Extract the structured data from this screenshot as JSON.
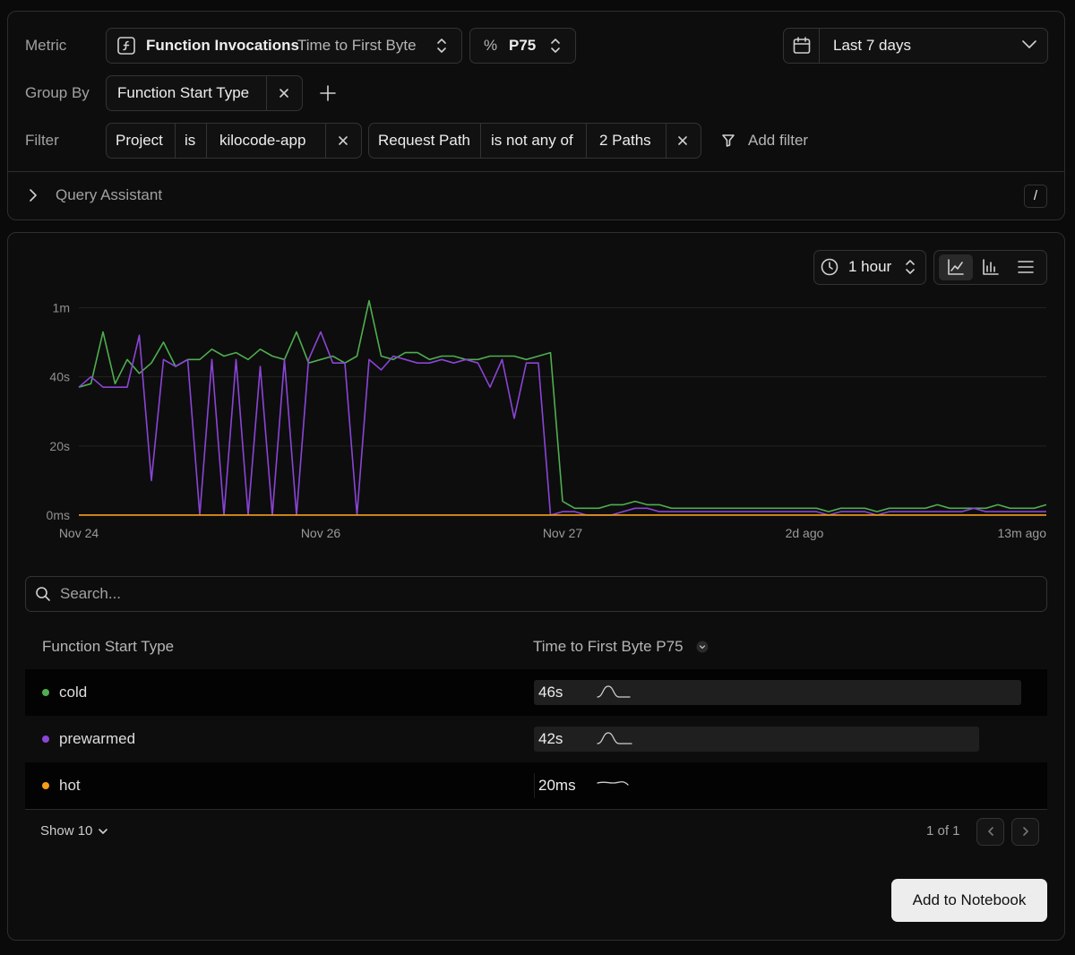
{
  "query": {
    "metric_label": "Metric",
    "metric": "Function Invocations",
    "metric_measure": "Time to First Byte",
    "aggregate_symbol": "%",
    "aggregate": "P75",
    "date_range": "Last 7 days",
    "group_by_label": "Group By",
    "group_by": "Function Start Type",
    "filter_label": "Filter",
    "filters": [
      {
        "field": "Project",
        "operator": "is",
        "value": "kilocode-app"
      },
      {
        "field": "Request Path",
        "operator": "is not any of",
        "value": "2 Paths"
      }
    ],
    "add_filter": "Add filter",
    "assistant": "Query Assistant",
    "assistant_shortcut": "/"
  },
  "controls": {
    "granularity": "1 hour"
  },
  "chart_data": {
    "type": "line",
    "x": [
      0,
      1,
      2,
      3,
      4,
      5,
      6,
      7,
      8,
      9,
      10,
      11,
      12,
      13,
      14,
      15,
      16,
      17,
      18,
      19,
      20,
      21,
      22,
      23,
      24,
      25,
      26,
      27,
      28,
      29,
      30,
      31,
      32,
      33,
      34,
      35,
      36,
      37,
      38,
      39,
      40,
      41,
      42,
      43,
      44,
      45,
      46,
      47,
      48,
      49,
      50,
      51,
      52,
      53,
      54,
      55,
      56,
      57,
      58,
      59,
      60,
      61,
      62,
      63,
      64,
      65,
      66,
      67,
      68,
      69,
      70,
      71,
      72,
      73,
      74,
      75,
      76,
      77,
      78,
      79,
      80
    ],
    "xlim": [
      0,
      80
    ],
    "xticks": [
      {
        "value": 0,
        "label": "Nov 24"
      },
      {
        "value": 20,
        "label": "Nov 26"
      },
      {
        "value": 40,
        "label": "Nov 27"
      },
      {
        "value": 60,
        "label": "2d ago"
      },
      {
        "value": 80,
        "label": "13m ago"
      }
    ],
    "ylim": [
      0,
      64
    ],
    "yticks": [
      {
        "value": 0,
        "label": "0ms"
      },
      {
        "value": 20,
        "label": "20s"
      },
      {
        "value": 40,
        "label": "40s"
      },
      {
        "value": 60,
        "label": "1m"
      }
    ],
    "grid": true,
    "series": [
      {
        "name": "cold",
        "color": "#4fae4f",
        "values": [
          37,
          38,
          53,
          38,
          45,
          41,
          44,
          50,
          43,
          45,
          45,
          48,
          46,
          47,
          45,
          48,
          46,
          45,
          53,
          44,
          45,
          46,
          44,
          46,
          62,
          46,
          45,
          47,
          47,
          45,
          46,
          46,
          45,
          45,
          46,
          46,
          46,
          45,
          46,
          47,
          4,
          2,
          2,
          2,
          3,
          3,
          4,
          3,
          3,
          2,
          2,
          2,
          2,
          2,
          2,
          2,
          2,
          2,
          2,
          2,
          2,
          2,
          1,
          2,
          2,
          2,
          1,
          2,
          2,
          2,
          2,
          3,
          2,
          2,
          2,
          2,
          3,
          2,
          2,
          2,
          3
        ]
      },
      {
        "name": "prewarmed",
        "color": "#8b45d6",
        "values": [
          37,
          40,
          37,
          37,
          37,
          52,
          10,
          45,
          43,
          45,
          0,
          45,
          0,
          45,
          0,
          43,
          0,
          45,
          0,
          45,
          53,
          44,
          44,
          0,
          45,
          42,
          46,
          45,
          44,
          44,
          45,
          44,
          45,
          44,
          37,
          45,
          28,
          44,
          44,
          0,
          1,
          1,
          0,
          0,
          0,
          1,
          2,
          2,
          1,
          1,
          1,
          1,
          1,
          1,
          1,
          1,
          1,
          1,
          1,
          1,
          1,
          1,
          0,
          1,
          1,
          1,
          0,
          1,
          1,
          1,
          1,
          1,
          1,
          1,
          2,
          1,
          1,
          1,
          1,
          1,
          1
        ]
      },
      {
        "name": "hot",
        "color": "#f59e1b",
        "values": [
          0.02,
          0.02,
          0.02,
          0.02,
          0.02,
          0.02,
          0.02,
          0.02,
          0.02,
          0.02,
          0.02,
          0.02,
          0.02,
          0.02,
          0.02,
          0.02,
          0.02,
          0.02,
          0.02,
          0.02,
          0.02,
          0.02,
          0.02,
          0.02,
          0.02,
          0.02,
          0.02,
          0.02,
          0.02,
          0.02,
          0.02,
          0.02,
          0.02,
          0.02,
          0.02,
          0.02,
          0.02,
          0.02,
          0.02,
          0.02,
          0.02,
          0.02,
          0.02,
          0.02,
          0.02,
          0.02,
          0.02,
          0.02,
          0.02,
          0.02,
          0.02,
          0.02,
          0.02,
          0.02,
          0.02,
          0.02,
          0.02,
          0.02,
          0.02,
          0.02,
          0.02,
          0.02,
          0.02,
          0.02,
          0.02,
          0.02,
          0.02,
          0.02,
          0.02,
          0.02,
          0.02,
          0.02,
          0.02,
          0.02,
          0.02,
          0.02,
          0.02,
          0.02,
          0.02,
          0.02,
          0.02
        ]
      }
    ]
  },
  "table": {
    "search_placeholder": "Search...",
    "columns": [
      "Function Start Type",
      "Time to First Byte P75"
    ],
    "values": [
      46,
      42,
      0.02
    ],
    "value_labels": [
      "46s",
      "42s",
      "20ms"
    ],
    "page_size": "Show 10",
    "pagination": "1 of 1"
  },
  "button": "Add to Notebook"
}
